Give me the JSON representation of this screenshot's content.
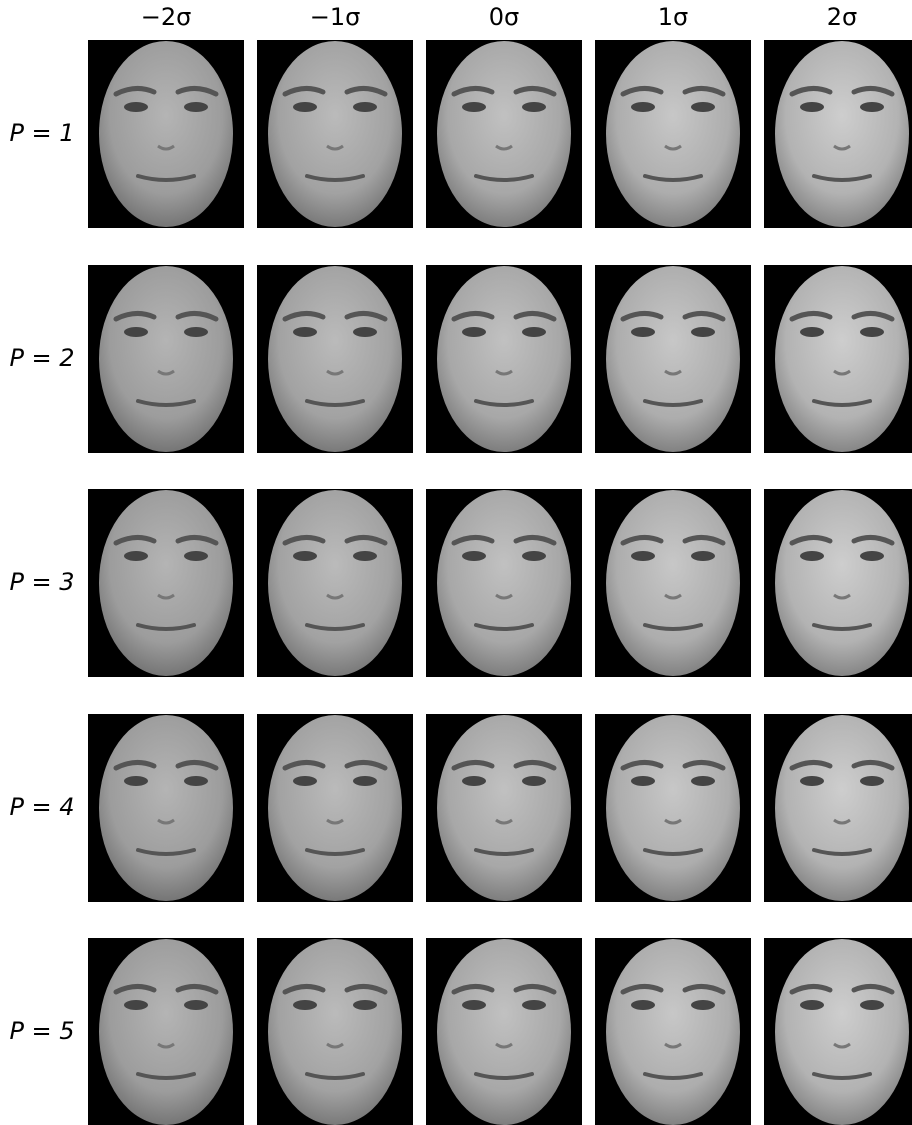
{
  "column_headers": [
    "−2σ",
    "−1σ",
    "0σ",
    "1σ",
    "2σ"
  ],
  "row_labels": [
    "P = 1",
    "P = 2",
    "P = 3",
    "P = 4",
    "P = 5"
  ]
}
